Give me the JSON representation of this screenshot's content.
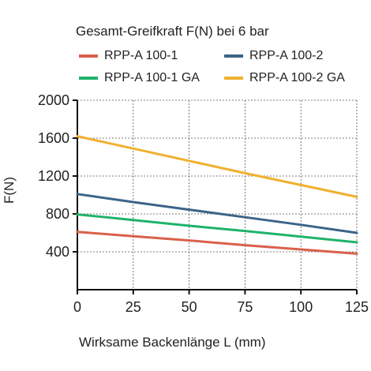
{
  "chart_data": {
    "type": "line",
    "title": "Gesamt-Greifkraft F(N) bei 6 bar",
    "xlabel": "Wirksame Backenlänge L (mm)",
    "ylabel": "F(N)",
    "xlim": [
      0,
      125
    ],
    "ylim": [
      0,
      2000
    ],
    "x_ticks": [
      0,
      25,
      50,
      75,
      100,
      125
    ],
    "y_ticks": [
      400,
      800,
      1200,
      1600,
      2000
    ],
    "grid": true,
    "legend_position": "top",
    "series": [
      {
        "name": "RPP-A 100-1",
        "color": "#d9604a",
        "x": [
          0,
          25,
          50,
          75,
          100,
          125
        ],
        "y": [
          610,
          565,
          520,
          470,
          425,
          380
        ]
      },
      {
        "name": "RPP-A 100-2",
        "color": "#3c6488",
        "x": [
          0,
          25,
          50,
          75,
          100,
          125
        ],
        "y": [
          1010,
          925,
          845,
          765,
          685,
          600
        ]
      },
      {
        "name": "RPP-A 100-1 GA",
        "color": "#1fb36a",
        "x": [
          0,
          25,
          50,
          75,
          100,
          125
        ],
        "y": [
          795,
          735,
          675,
          620,
          560,
          500
        ]
      },
      {
        "name": "RPP-A 100-2 GA",
        "color": "#f0b030",
        "x": [
          0,
          25,
          50,
          75,
          100,
          125
        ],
        "y": [
          1620,
          1490,
          1360,
          1230,
          1105,
          980
        ]
      }
    ]
  }
}
